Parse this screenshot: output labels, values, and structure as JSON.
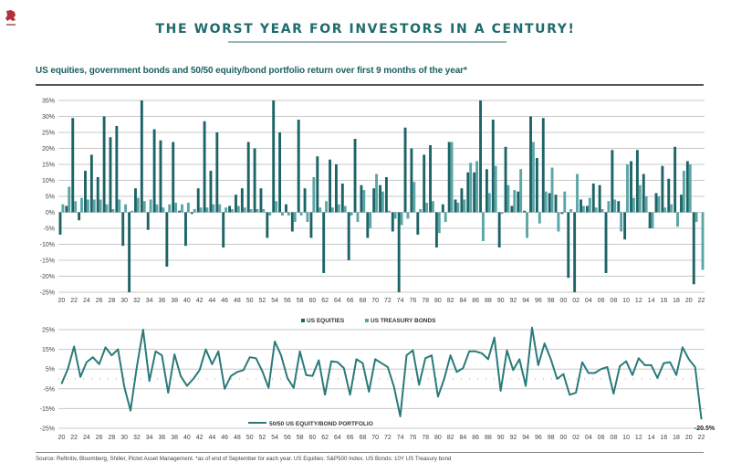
{
  "header": {
    "logo_icon": "lion-crest-icon",
    "title": "THE WORST YEAR FOR INVESTORS IN A CENTURY!",
    "subtitle": "US equities, government bonds and 50/50 equity/bond portfolio return over first 9 months of the year*"
  },
  "footer": {
    "source": "Source: Refinitiv, Bloomberg, Shiller, Pictet Asset Management. *as of end of September for each year. US Equities: S&P500 Index. US Bonds: 10Y US Treasury bond"
  },
  "colors": {
    "equities": "#1c6467",
    "bonds": "#5aa5a6",
    "portfolio_line": "#2a7a7a",
    "title": "#1e6b6e",
    "grid": "#c8c8c8"
  },
  "chart_data": [
    {
      "type": "bar",
      "title": "US equities, government bonds and 50/50 equity/bond portfolio return over first 9 months of the year*",
      "xlabel": "",
      "ylabel": "",
      "ylim": [
        -25,
        35
      ],
      "yticks": [
        "35%",
        "30%",
        "25%",
        "20%",
        "15%",
        "10%",
        "5%",
        "0%",
        "-5%",
        "-10%",
        "-15%",
        "-20%",
        "-25%"
      ],
      "ytick_values": [
        35,
        30,
        25,
        20,
        15,
        10,
        5,
        0,
        -5,
        -10,
        -15,
        -20,
        -25
      ],
      "grid": true,
      "legend": "bottom-center",
      "xtick_labels": [
        "20",
        "22",
        "24",
        "26",
        "28",
        "30",
        "32",
        "34",
        "36",
        "38",
        "40",
        "42",
        "44",
        "46",
        "48",
        "50",
        "52",
        "54",
        "56",
        "58",
        "60",
        "62",
        "64",
        "66",
        "68",
        "70",
        "72",
        "74",
        "76",
        "78",
        "80",
        "82",
        "84",
        "86",
        "88",
        "90",
        "92",
        "94",
        "96",
        "98",
        "00",
        "02",
        "04",
        "06",
        "08",
        "10",
        "12",
        "14",
        "16",
        "18",
        "20",
        "22"
      ],
      "x": [
        1920,
        1921,
        1922,
        1923,
        1924,
        1925,
        1926,
        1927,
        1928,
        1929,
        1930,
        1931,
        1932,
        1933,
        1934,
        1935,
        1936,
        1937,
        1938,
        1939,
        1940,
        1941,
        1942,
        1943,
        1944,
        1945,
        1946,
        1947,
        1948,
        1949,
        1950,
        1951,
        1952,
        1953,
        1954,
        1955,
        1956,
        1957,
        1958,
        1959,
        1960,
        1961,
        1962,
        1963,
        1964,
        1965,
        1966,
        1967,
        1968,
        1969,
        1970,
        1971,
        1972,
        1973,
        1974,
        1975,
        1976,
        1977,
        1978,
        1979,
        1980,
        1981,
        1982,
        1983,
        1984,
        1985,
        1986,
        1987,
        1988,
        1989,
        1990,
        1991,
        1992,
        1993,
        1994,
        1995,
        1996,
        1997,
        1998,
        1999,
        2000,
        2001,
        2002,
        2003,
        2004,
        2005,
        2006,
        2007,
        2008,
        2009,
        2010,
        2011,
        2012,
        2013,
        2014,
        2015,
        2016,
        2017,
        2018,
        2019,
        2020,
        2021,
        2022
      ],
      "series": [
        {
          "name": "US EQUITIES",
          "values": [
            -7,
            2,
            29.5,
            -2.5,
            13,
            18,
            11,
            30,
            23.5,
            27,
            -10.5,
            -25,
            7.5,
            35,
            -5.5,
            26,
            22.5,
            -17,
            22,
            0.5,
            -10.5,
            -0.5,
            7.5,
            28.5,
            13,
            25,
            -11,
            2,
            5.5,
            7.5,
            22,
            20,
            7.5,
            -8,
            35,
            25,
            2.5,
            -6,
            29,
            7.5,
            -8,
            17.5,
            -19,
            16.5,
            15,
            9,
            -15,
            23,
            8.5,
            -8,
            7.5,
            8.5,
            11,
            -6,
            -25,
            26.5,
            20,
            -7,
            18,
            21,
            -11,
            2.5,
            22,
            4,
            7.5,
            12.5,
            12.5,
            35,
            13.5,
            29,
            -11,
            20.5,
            2,
            6.5,
            0.5,
            30,
            17,
            29.5,
            6,
            5.5,
            -0.5,
            -20.5,
            -25,
            4,
            2,
            9,
            8.5,
            -19,
            19.5,
            3.5,
            -8.5,
            16,
            19.5,
            12,
            -5,
            6,
            14.5,
            10.5,
            20.5,
            5.5,
            16,
            -22.5
          ]
        },
        {
          "name": "US TREASURY BONDS",
          "values": [
            2.5,
            8,
            3.5,
            4.5,
            4,
            4,
            4,
            2.5,
            1,
            4,
            2.5,
            0.5,
            4.5,
            3.5,
            4,
            2.5,
            1.5,
            2.5,
            3,
            2.5,
            3,
            1,
            1.5,
            1.5,
            2.5,
            2.5,
            1.5,
            1,
            2,
            1.5,
            1,
            1,
            1,
            -1,
            3.5,
            -1,
            -1,
            -3,
            -1,
            -3,
            11,
            1.5,
            3.5,
            1.5,
            2.5,
            2,
            -1,
            -3,
            7,
            -5,
            12,
            6.5,
            0.5,
            -2,
            -4,
            -2,
            9.5,
            1,
            3,
            3.5,
            -6.5,
            -3,
            22,
            3,
            4,
            15.5,
            16,
            -9,
            6,
            14.5,
            -0.5,
            8.5,
            7,
            13.5,
            -8,
            22,
            -3.5,
            6.5,
            14,
            -6,
            6.5,
            1,
            12,
            2,
            4.5,
            1.5,
            1,
            3.5,
            4,
            -6,
            15,
            4.5,
            8.5,
            5,
            -5,
            5,
            1.5,
            2.5,
            -4.5,
            13,
            15,
            -3,
            -18
          ]
        }
      ]
    },
    {
      "type": "line",
      "title": "",
      "xlabel": "",
      "ylabel": "",
      "ylim": [
        -25,
        25
      ],
      "yticks": [
        "25%",
        "15%",
        "5%",
        "-5%",
        "-15%",
        "-25%"
      ],
      "ytick_values": [
        25,
        15,
        5,
        -5,
        -15,
        -25
      ],
      "grid": true,
      "legend": "bottom-center",
      "annotation": "-20.5%",
      "xtick_labels": [
        "20",
        "22",
        "24",
        "26",
        "28",
        "30",
        "32",
        "34",
        "36",
        "38",
        "40",
        "42",
        "44",
        "46",
        "48",
        "50",
        "52",
        "54",
        "56",
        "58",
        "60",
        "62",
        "64",
        "66",
        "68",
        "70",
        "72",
        "74",
        "76",
        "78",
        "80",
        "82",
        "84",
        "86",
        "88",
        "90",
        "92",
        "94",
        "96",
        "98",
        "00",
        "02",
        "04",
        "06",
        "08",
        "10",
        "12",
        "14",
        "16",
        "18",
        "20",
        "22"
      ],
      "x": [
        1920,
        1921,
        1922,
        1923,
        1924,
        1925,
        1926,
        1927,
        1928,
        1929,
        1930,
        1931,
        1932,
        1933,
        1934,
        1935,
        1936,
        1937,
        1938,
        1939,
        1940,
        1941,
        1942,
        1943,
        1944,
        1945,
        1946,
        1947,
        1948,
        1949,
        1950,
        1951,
        1952,
        1953,
        1954,
        1955,
        1956,
        1957,
        1958,
        1959,
        1960,
        1961,
        1962,
        1963,
        1964,
        1965,
        1966,
        1967,
        1968,
        1969,
        1970,
        1971,
        1972,
        1973,
        1974,
        1975,
        1976,
        1977,
        1978,
        1979,
        1980,
        1981,
        1982,
        1983,
        1984,
        1985,
        1986,
        1987,
        1988,
        1989,
        1990,
        1991,
        1992,
        1993,
        1994,
        1995,
        1996,
        1997,
        1998,
        1999,
        2000,
        2001,
        2002,
        2003,
        2004,
        2005,
        2006,
        2007,
        2008,
        2009,
        2010,
        2011,
        2012,
        2013,
        2014,
        2015,
        2016,
        2017,
        2018,
        2019,
        2020,
        2021,
        2022
      ],
      "series": [
        {
          "name": "50/50 US EQUITY/BOND PORTFOLIO",
          "values": [
            -2.5,
            5,
            16.5,
            1,
            8.5,
            11,
            7.5,
            16,
            12,
            15,
            -4,
            -16,
            6,
            25,
            -1,
            14,
            12,
            -7,
            12.5,
            1.5,
            -3.5,
            0,
            4.5,
            15,
            7.5,
            14,
            -5,
            1.5,
            3.5,
            4.5,
            11,
            10.5,
            4,
            -4.5,
            19,
            12,
            0.5,
            -4.5,
            14,
            2,
            1.5,
            9.5,
            -8,
            9,
            8.5,
            5.5,
            -8,
            10,
            8,
            -6.5,
            10,
            8,
            6,
            -4,
            -19,
            12,
            14.5,
            -3,
            10.5,
            12,
            -9,
            0,
            12,
            3.5,
            5.5,
            14,
            14,
            13,
            10,
            21,
            -6,
            14.5,
            4.5,
            10,
            -3.5,
            26,
            7,
            18,
            10,
            0,
            2.5,
            -8,
            -7,
            8.5,
            3,
            3,
            5,
            6,
            -7.5,
            6.5,
            9,
            2,
            10.5,
            7,
            7,
            0.5,
            8,
            8.5,
            2,
            16,
            10,
            6,
            -20.5
          ]
        }
      ]
    }
  ]
}
